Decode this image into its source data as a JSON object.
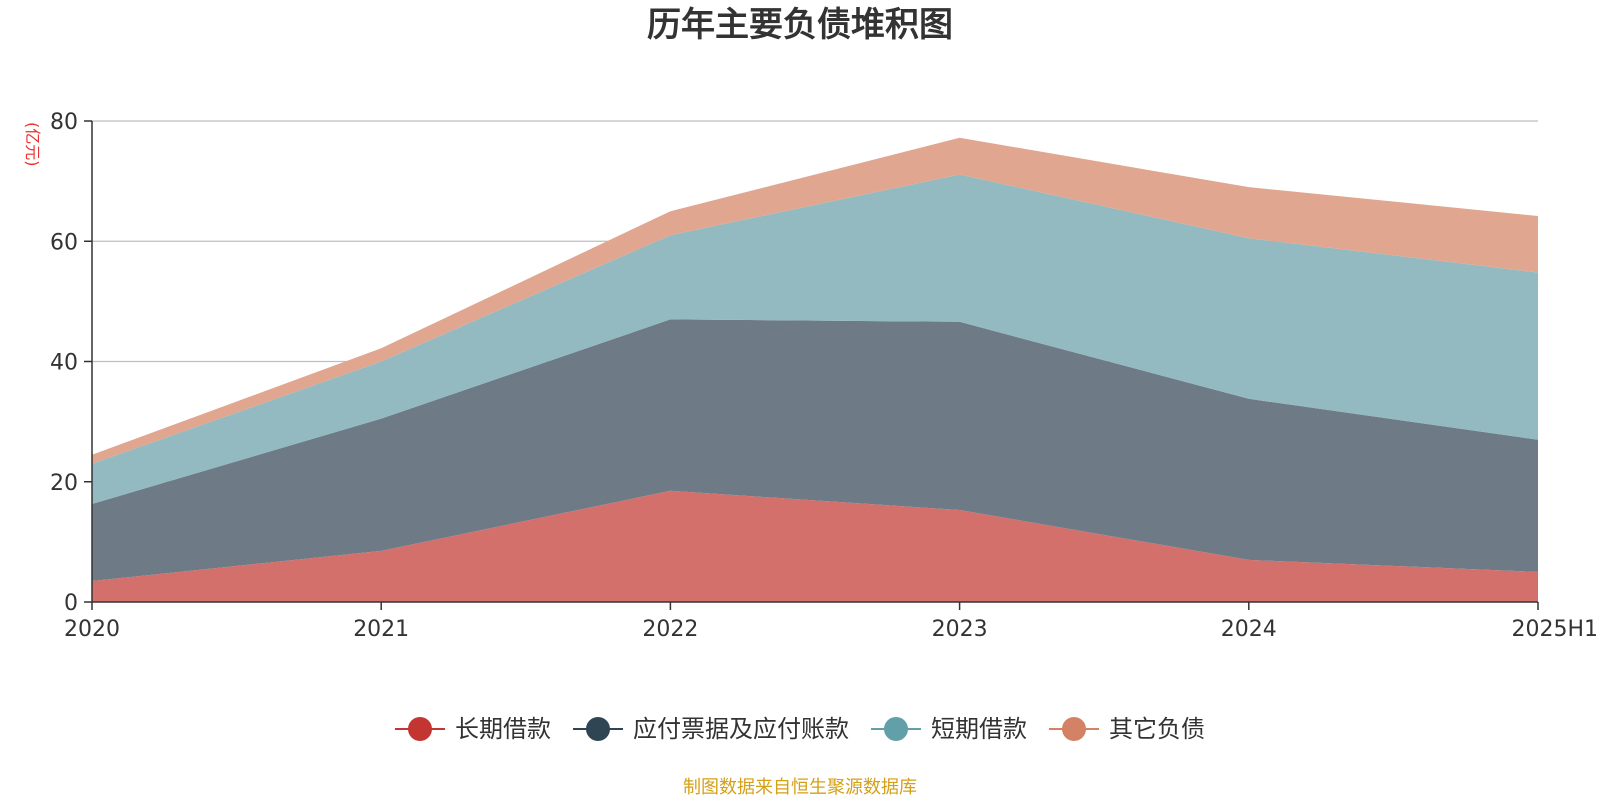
{
  "colors": {
    "title": "#333333",
    "unit": "#e8322d",
    "footer": "#d4a017",
    "axis": "#333333",
    "grid": "#bfbfbf"
  },
  "chart_data": {
    "type": "area",
    "stacked": true,
    "title": "历年主要负债堆积图",
    "y_unit": "(亿元)",
    "categories": [
      "2020",
      "2021",
      "2022",
      "2023",
      "2024",
      "2025H1"
    ],
    "ylim": [
      0,
      80
    ],
    "yticks": [
      "0",
      "20",
      "40",
      "60",
      "80"
    ],
    "grid": true,
    "legend_position": "bottom",
    "series": [
      {
        "name": "长期借款",
        "values": [
          3.5,
          8.5,
          18.5,
          15.3,
          7.0,
          5.0
        ],
        "fill": "#d4706c",
        "marker": "#c23531"
      },
      {
        "name": "应付票据及应付账款",
        "values": [
          12.8,
          22.0,
          28.5,
          31.3,
          26.8,
          22.0
        ],
        "fill": "#6e7b86",
        "marker": "#2f4554"
      },
      {
        "name": "短期借款",
        "values": [
          6.7,
          9.5,
          14.0,
          24.5,
          26.7,
          27.8
        ],
        "fill": "#92bac0",
        "marker": "#61a0a8"
      },
      {
        "name": "其它负债",
        "values": [
          1.5,
          2.2,
          4.0,
          6.1,
          8.5,
          9.4
        ],
        "fill": "#e0a690",
        "marker": "#d48265"
      }
    ]
  },
  "footer": {
    "source": "制图数据来自恒生聚源数据库"
  }
}
